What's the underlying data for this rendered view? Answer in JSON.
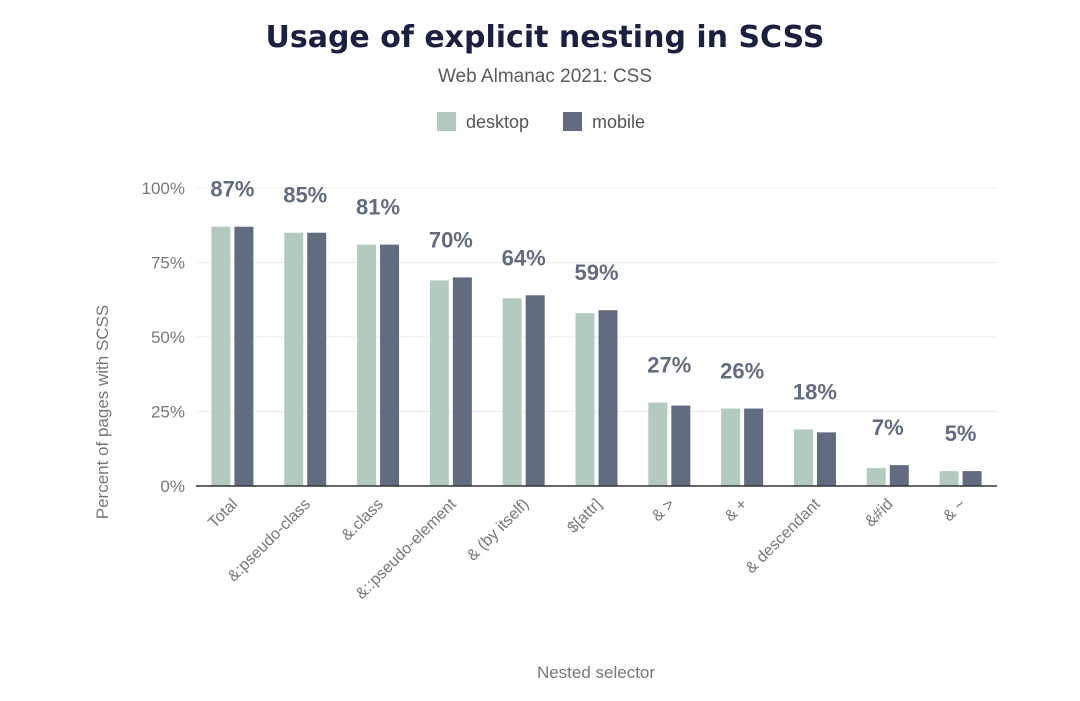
{
  "chart_data": {
    "type": "bar",
    "title": "Usage of explicit nesting in SCSS",
    "subtitle": "Web Almanac 2021: CSS",
    "xlabel": "Nested selector",
    "ylabel": "Percent of pages with SCSS",
    "ylim": [
      0,
      100
    ],
    "yticks": [
      "0%",
      "25%",
      "50%",
      "75%",
      "100%"
    ],
    "ytick_values": [
      0,
      25,
      50,
      75,
      100
    ],
    "grid": true,
    "legend_position": "top-center",
    "categories": [
      "Total",
      "&:pseudo-class",
      "&.class",
      "&::pseudo-element",
      "& (by itself)",
      "$[attr]",
      "& >",
      "& +",
      "& descendant",
      "&#id",
      "& ~"
    ],
    "series": [
      {
        "name": "desktop",
        "color": "#b3cbbf",
        "values": [
          87,
          85,
          81,
          69,
          63,
          58,
          28,
          26,
          19,
          6,
          5
        ]
      },
      {
        "name": "mobile",
        "color": "#626c80",
        "values": [
          87,
          85,
          81,
          70,
          64,
          59,
          27,
          26,
          18,
          7,
          5
        ]
      }
    ],
    "data_labels": [
      "87%",
      "85%",
      "81%",
      "70%",
      "64%",
      "59%",
      "27%",
      "26%",
      "18%",
      "7%",
      "5%"
    ]
  }
}
